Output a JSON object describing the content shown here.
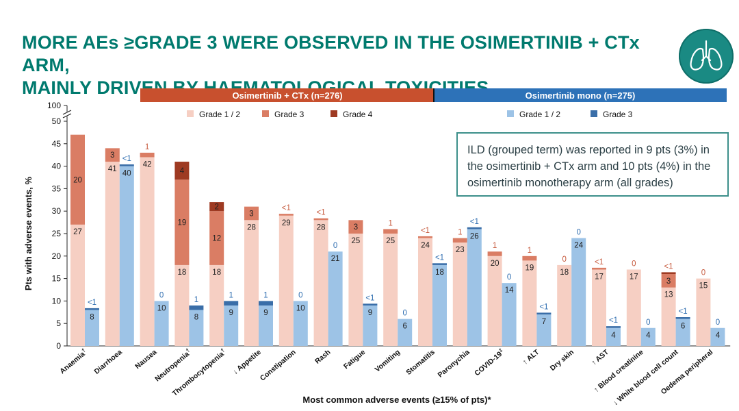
{
  "title_line1": "MORE AEs ≥GRADE 3 WERE OBSERVED IN THE OSIMERTINIB + CTx ARM,",
  "title_line2": "MAINLY DRIVEN BY HAEMATOLOGICAL TOXICITIES",
  "logo_icon": "lungs-icon",
  "note_text": "ILD (grouped term) was reported in 9 pts (3%) in the osimertinib + CTx arm and 10 pts (4%) in the osimertinib monotherapy arm (all grades)",
  "colors": {
    "title": "#007a6e",
    "combo_banner": "#c8502e",
    "mono_banner": "#2d72b8",
    "combo_g12": "#f6cfc3",
    "combo_g3": "#da7d64",
    "combo_g4": "#9e3a22",
    "mono_g12": "#9dc3e6",
    "mono_g3": "#3a6ea8",
    "combo_label": "#c65a3d",
    "mono_label": "#2e6db0"
  },
  "chart_data": {
    "type": "bar",
    "xlabel": "Most common adverse events (≥15% of pts)*",
    "ylabel": "Pts with adverse events, %",
    "ylim": [
      0,
      50
    ],
    "y_ticks": [
      "0",
      "5",
      "10",
      "15",
      "20",
      "25",
      "30",
      "35",
      "40",
      "45",
      "50"
    ],
    "y_top_label": "100",
    "axis_break": true,
    "arms": [
      {
        "name": "Osimertinib + CTx (n=276)",
        "legend": [
          "Grade 1 / 2",
          "Grade 3",
          "Grade 4"
        ]
      },
      {
        "name": "Osimertinib mono (n=275)",
        "legend": [
          "Grade 1 / 2",
          "Grade 3"
        ]
      }
    ],
    "categories": [
      {
        "name": "Anaemia",
        "sup": "†",
        "combo": [
          {
            "g": "g12",
            "v": 27,
            "label": "27"
          },
          {
            "g": "g3",
            "v": 20,
            "label": "20"
          }
        ],
        "mono": [
          {
            "g": "g12",
            "v": 8,
            "label": "8"
          },
          {
            "g": "g3",
            "v": 0.4,
            "label": "<1",
            "above": true
          }
        ]
      },
      {
        "name": "Diarrhoea",
        "sup": "",
        "combo": [
          {
            "g": "g12",
            "v": 41,
            "label": "41"
          },
          {
            "g": "g3",
            "v": 3,
            "label": "3"
          }
        ],
        "mono": [
          {
            "g": "g12",
            "v": 40,
            "label": "40"
          },
          {
            "g": "g3",
            "v": 0.4,
            "label": "<1",
            "above": true
          }
        ]
      },
      {
        "name": "Nausea",
        "sup": "",
        "combo": [
          {
            "g": "g12",
            "v": 42,
            "label": "42"
          },
          {
            "g": "g3",
            "v": 1,
            "label": "1",
            "above": true
          }
        ],
        "mono": [
          {
            "g": "g12",
            "v": 10,
            "label": "10"
          },
          {
            "g": "g3",
            "v": 0,
            "label": "0",
            "above": true
          }
        ]
      },
      {
        "name": "Neutropenia",
        "sup": "†",
        "combo": [
          {
            "g": "g12",
            "v": 18,
            "label": "18"
          },
          {
            "g": "g3",
            "v": 19,
            "label": "19"
          },
          {
            "g": "g4",
            "v": 4,
            "label": "4"
          }
        ],
        "mono": [
          {
            "g": "g12",
            "v": 8,
            "label": "8"
          },
          {
            "g": "g3",
            "v": 1,
            "label": "1",
            "above": true
          }
        ]
      },
      {
        "name": "Thrombocytopenia",
        "sup": "†",
        "combo": [
          {
            "g": "g12",
            "v": 18,
            "label": "18"
          },
          {
            "g": "g3",
            "v": 12,
            "label": "12"
          },
          {
            "g": "g4",
            "v": 2,
            "label": "2"
          }
        ],
        "mono": [
          {
            "g": "g12",
            "v": 9,
            "label": "9"
          },
          {
            "g": "g3",
            "v": 1,
            "label": "1",
            "above": true
          }
        ]
      },
      {
        "name": "↓ Appetite",
        "sup": "",
        "combo": [
          {
            "g": "g12",
            "v": 28,
            "label": "28"
          },
          {
            "g": "g3",
            "v": 3,
            "label": "3"
          }
        ],
        "mono": [
          {
            "g": "g12",
            "v": 9,
            "label": "9"
          },
          {
            "g": "g3",
            "v": 1,
            "label": "1",
            "above": true
          }
        ]
      },
      {
        "name": "Constipation",
        "sup": "",
        "combo": [
          {
            "g": "g12",
            "v": 29,
            "label": "29"
          },
          {
            "g": "g3",
            "v": 0.4,
            "label": "<1",
            "above": true
          }
        ],
        "mono": [
          {
            "g": "g12",
            "v": 10,
            "label": "10"
          },
          {
            "g": "g3",
            "v": 0,
            "label": "0",
            "above": true
          }
        ]
      },
      {
        "name": "Rash",
        "sup": "",
        "combo": [
          {
            "g": "g12",
            "v": 28,
            "label": "28"
          },
          {
            "g": "g3",
            "v": 0.4,
            "label": "<1",
            "above": true
          }
        ],
        "mono": [
          {
            "g": "g12",
            "v": 21,
            "label": "21"
          },
          {
            "g": "g3",
            "v": 0,
            "label": "0",
            "above": true
          }
        ]
      },
      {
        "name": "Fatigue",
        "sup": "",
        "combo": [
          {
            "g": "g12",
            "v": 25,
            "label": "25"
          },
          {
            "g": "g3",
            "v": 3,
            "label": "3"
          }
        ],
        "mono": [
          {
            "g": "g12",
            "v": 9,
            "label": "9"
          },
          {
            "g": "g3",
            "v": 0.4,
            "label": "<1",
            "above": true
          }
        ]
      },
      {
        "name": "Vomiting",
        "sup": "",
        "combo": [
          {
            "g": "g12",
            "v": 25,
            "label": "25"
          },
          {
            "g": "g3",
            "v": 1,
            "label": "1",
            "above": true
          }
        ],
        "mono": [
          {
            "g": "g12",
            "v": 6,
            "label": "6"
          },
          {
            "g": "g3",
            "v": 0,
            "label": "0",
            "above": true
          }
        ]
      },
      {
        "name": "Stomatitis",
        "sup": "",
        "combo": [
          {
            "g": "g12",
            "v": 24,
            "label": "24"
          },
          {
            "g": "g3",
            "v": 0.4,
            "label": "<1",
            "above": true
          }
        ],
        "mono": [
          {
            "g": "g12",
            "v": 18,
            "label": "18"
          },
          {
            "g": "g3",
            "v": 0.4,
            "label": "<1",
            "above": true
          }
        ]
      },
      {
        "name": "Paronychia",
        "sup": "",
        "combo": [
          {
            "g": "g12",
            "v": 23,
            "label": "23"
          },
          {
            "g": "g3",
            "v": 1,
            "label": "1",
            "above": true
          }
        ],
        "mono": [
          {
            "g": "g12",
            "v": 26,
            "label": "26"
          },
          {
            "g": "g3",
            "v": 0.4,
            "label": "<1",
            "above": true
          }
        ]
      },
      {
        "name": "COVID-19",
        "sup": "‡",
        "combo": [
          {
            "g": "g12",
            "v": 20,
            "label": "20"
          },
          {
            "g": "g3",
            "v": 1,
            "label": "1",
            "above": true
          }
        ],
        "mono": [
          {
            "g": "g12",
            "v": 14,
            "label": "14"
          },
          {
            "g": "g3",
            "v": 0,
            "label": "0",
            "above": true
          }
        ]
      },
      {
        "name": "↑ ALT",
        "sup": "",
        "combo": [
          {
            "g": "g12",
            "v": 19,
            "label": "19"
          },
          {
            "g": "g3",
            "v": 1,
            "label": "1",
            "above": true
          }
        ],
        "mono": [
          {
            "g": "g12",
            "v": 7,
            "label": "7"
          },
          {
            "g": "g3",
            "v": 0.4,
            "label": "<1",
            "above": true
          }
        ]
      },
      {
        "name": "Dry skin",
        "sup": "",
        "combo": [
          {
            "g": "g12",
            "v": 18,
            "label": "18"
          },
          {
            "g": "g3",
            "v": 0,
            "label": "0",
            "above": true
          }
        ],
        "mono": [
          {
            "g": "g12",
            "v": 24,
            "label": "24"
          },
          {
            "g": "g3",
            "v": 0,
            "label": "0",
            "above": true
          }
        ]
      },
      {
        "name": "↑ AST",
        "sup": "",
        "combo": [
          {
            "g": "g12",
            "v": 17,
            "label": "17"
          },
          {
            "g": "g3",
            "v": 0.4,
            "label": "<1",
            "above": true
          }
        ],
        "mono": [
          {
            "g": "g12",
            "v": 4,
            "label": "4"
          },
          {
            "g": "g3",
            "v": 0.4,
            "label": "<1",
            "above": true
          }
        ]
      },
      {
        "name": "↑ Blood creatinine",
        "sup": "",
        "combo": [
          {
            "g": "g12",
            "v": 17,
            "label": "17"
          },
          {
            "g": "g3",
            "v": 0,
            "label": "0",
            "above": true
          }
        ],
        "mono": [
          {
            "g": "g12",
            "v": 4,
            "label": "4"
          },
          {
            "g": "g3",
            "v": 0,
            "label": "0",
            "above": true
          }
        ]
      },
      {
        "name": "↓ White blood cell count",
        "sup": "",
        "combo": [
          {
            "g": "g12",
            "v": 13,
            "label": "13"
          },
          {
            "g": "g3",
            "v": 3,
            "label": "3"
          },
          {
            "g": "g4",
            "v": 0.4,
            "label": "<1",
            "above": true
          }
        ],
        "mono": [
          {
            "g": "g12",
            "v": 6,
            "label": "6"
          },
          {
            "g": "g3",
            "v": 0.4,
            "label": "<1",
            "above": true
          }
        ]
      },
      {
        "name": "Oedema peripheral",
        "sup": "",
        "combo": [
          {
            "g": "g12",
            "v": 15,
            "label": "15"
          },
          {
            "g": "g3",
            "v": 0,
            "label": "0",
            "above": true
          }
        ],
        "mono": [
          {
            "g": "g12",
            "v": 4,
            "label": "4"
          },
          {
            "g": "g3",
            "v": 0,
            "label": "0",
            "above": true
          }
        ]
      }
    ]
  }
}
